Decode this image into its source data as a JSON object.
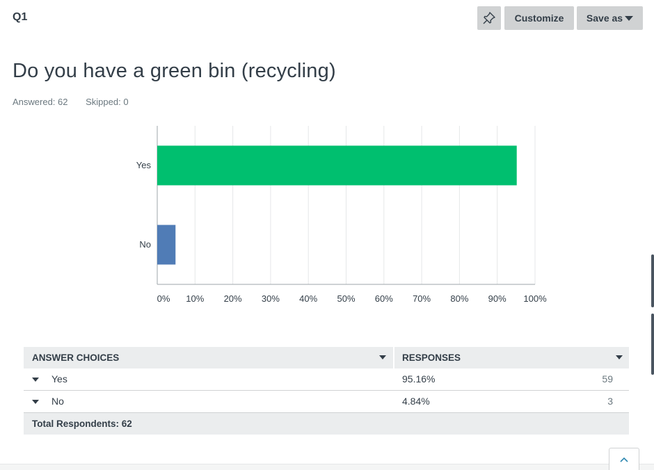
{
  "question": {
    "number": "Q1",
    "title": "Do you have a green bin (recycling)",
    "answered": "Answered: 62",
    "skipped": "Skipped: 0"
  },
  "toolbar": {
    "pin_icon": "pin-icon",
    "customize_label": "Customize",
    "save_as_label": "Save as"
  },
  "chart_data": {
    "type": "bar",
    "orientation": "horizontal",
    "categories": [
      "Yes",
      "No"
    ],
    "values": [
      95.16,
      4.84
    ],
    "colors": [
      "#00bf6f",
      "#507cb6"
    ],
    "xlim": [
      0,
      100
    ],
    "x_ticks": [
      "0%",
      "10%",
      "20%",
      "30%",
      "40%",
      "50%",
      "60%",
      "70%",
      "80%",
      "90%",
      "100%"
    ],
    "grid": true
  },
  "table": {
    "header_choices": "ANSWER CHOICES",
    "header_responses": "RESPONSES",
    "rows": [
      {
        "choice": "Yes",
        "percent": "95.16%",
        "count": "59"
      },
      {
        "choice": "No",
        "percent": "4.84%",
        "count": "3"
      }
    ],
    "footer": "Total Respondents: 62"
  },
  "colors": {
    "accent_green": "#00bf6f",
    "accent_blue": "#507cb6",
    "button_gray": "#d0d2d3",
    "header_gray": "#ebedee"
  }
}
